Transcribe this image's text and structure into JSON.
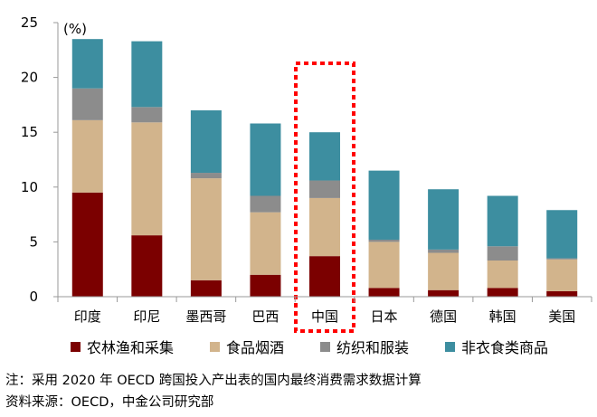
{
  "chart_data": {
    "type": "bar",
    "stacked": true,
    "unit_label": "(%)",
    "categories": [
      "印度",
      "印尼",
      "墨西哥",
      "巴西",
      "中国",
      "日本",
      "德国",
      "韩国",
      "美国"
    ],
    "series": [
      {
        "name": "农林渔和采集",
        "color": "#7b0000",
        "values": [
          9.5,
          5.6,
          1.5,
          2.0,
          3.7,
          0.8,
          0.6,
          0.8,
          0.5
        ]
      },
      {
        "name": "食品烟酒",
        "color": "#d2b48c",
        "values": [
          6.6,
          10.3,
          9.3,
          5.7,
          5.3,
          4.2,
          3.4,
          2.5,
          2.9
        ]
      },
      {
        "name": "纺织和服装",
        "color": "#8c8c8c",
        "values": [
          2.9,
          1.4,
          0.5,
          1.5,
          1.6,
          0.2,
          0.3,
          1.3,
          0.1
        ]
      },
      {
        "name": "非衣食类商品",
        "color": "#3d8ea0",
        "values": [
          4.5,
          6.0,
          5.7,
          6.6,
          4.4,
          6.3,
          5.5,
          4.6,
          4.4
        ]
      }
    ],
    "ylim": [
      0,
      25
    ],
    "yticks": [
      0,
      5,
      10,
      15,
      20,
      25
    ],
    "highlight_category": "中国",
    "highlight_color": "#ff0000",
    "legend_position": "bottom",
    "grid": false
  },
  "notes": {
    "note": "注：采用 2020 年 OECD 跨国投入产出表的国内最终消费需求数据计算",
    "source": "资料来源：OECD，中金公司研究部"
  }
}
